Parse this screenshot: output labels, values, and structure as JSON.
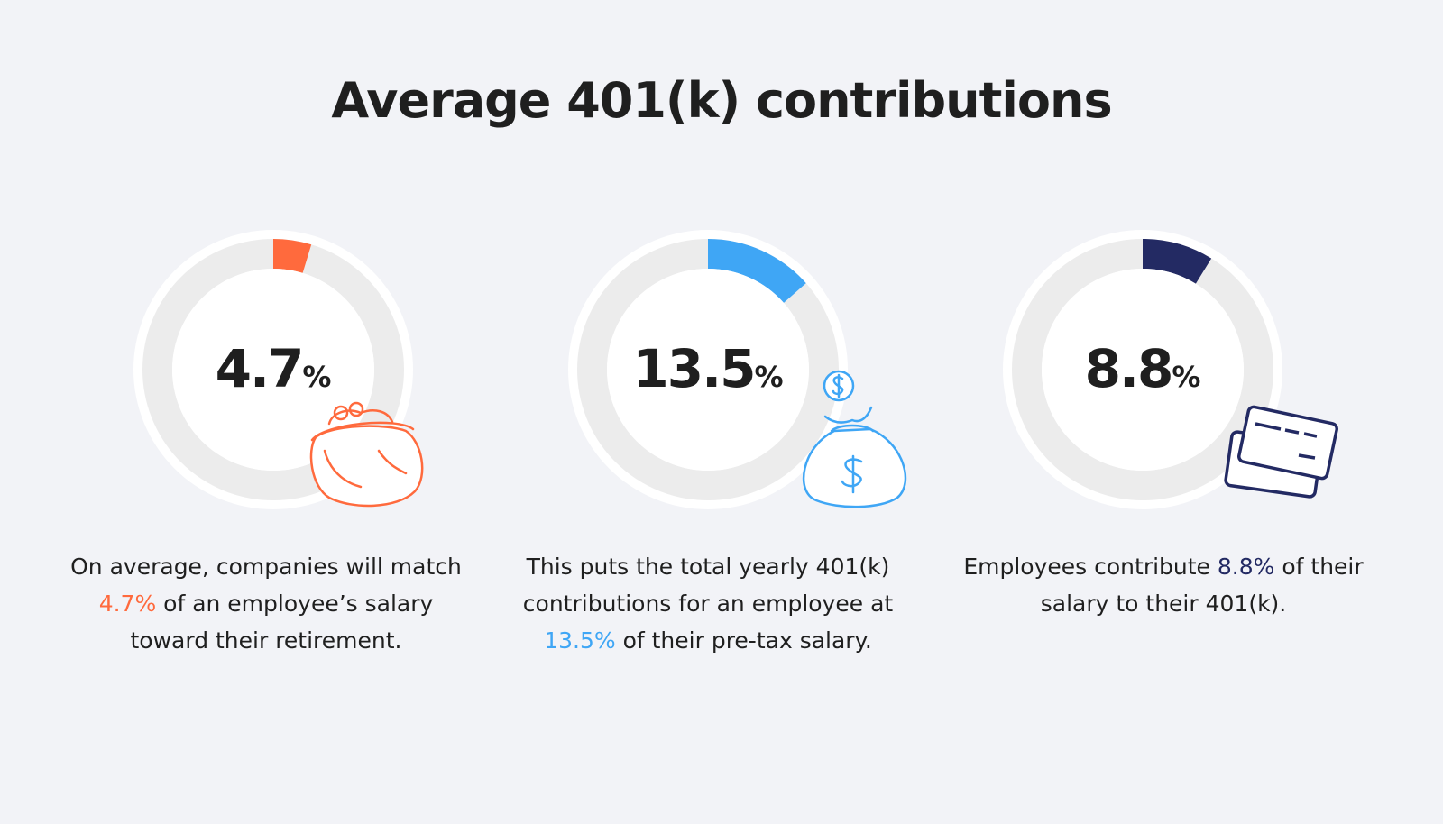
{
  "title": "Average 401(k) contributions",
  "chart_data": [
    {
      "type": "donut",
      "values": [
        4.7
      ],
      "value_labels": [
        "4.7"
      ],
      "unit": "%",
      "color": "#ff6a3d",
      "ylim": [
        0,
        100
      ],
      "description": [
        "On average, companies will match ",
        "4.7%",
        " of an employee’s salary toward their retirement."
      ]
    },
    {
      "type": "donut",
      "values": [
        13.5
      ],
      "value_labels": [
        "13.5"
      ],
      "unit": "%",
      "color": "#3fa6f5",
      "ylim": [
        0,
        100
      ],
      "description": [
        "This puts the total yearly 401(k) contributions for an employee at ",
        "13.5%",
        " of their pre-tax salary."
      ]
    },
    {
      "type": "donut",
      "values": [
        8.8
      ],
      "value_labels": [
        "8.8"
      ],
      "unit": "%",
      "color": "#232a63",
      "ylim": [
        0,
        100
      ],
      "description": [
        "Employees contribute ",
        "8.8%",
        " of their salary to their 401(k)."
      ]
    }
  ]
}
